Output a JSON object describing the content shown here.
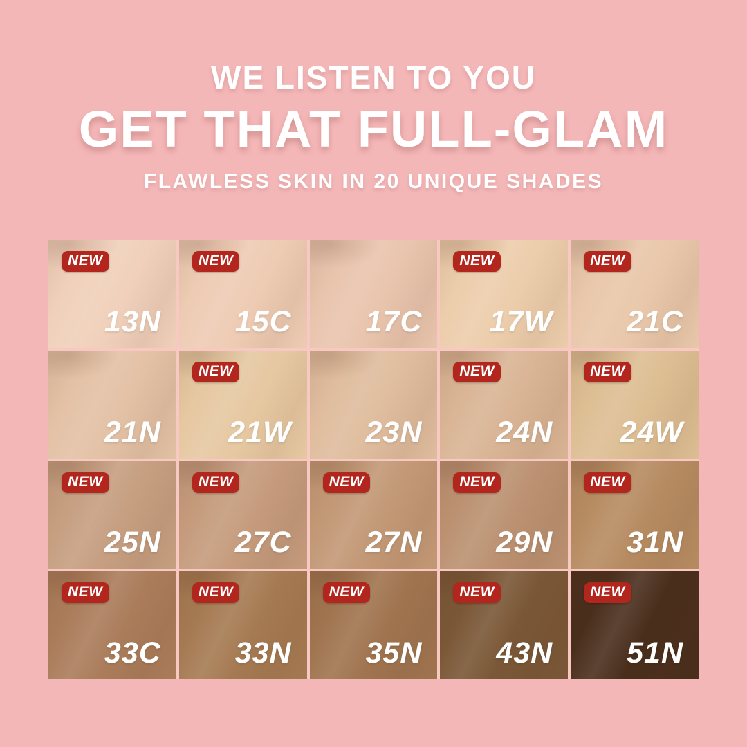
{
  "page": {
    "background": "#f4b7b7"
  },
  "header": {
    "eyebrow": "WE LISTEN TO YOU",
    "title": "GET THAT FULL-GLAM",
    "subtitle": "FLAWLESS SKIN IN 20 UNIQUE SHADES"
  },
  "badge": {
    "label": "NEW",
    "color": "#b3261e"
  },
  "shades": [
    {
      "code": "13N",
      "color": "#f0d0ba",
      "new": true
    },
    {
      "code": "15C",
      "color": "#eecbb3",
      "new": true
    },
    {
      "code": "17C",
      "color": "#e9c4ad",
      "new": false
    },
    {
      "code": "17W",
      "color": "#eccdab",
      "new": true
    },
    {
      "code": "21C",
      "color": "#e9c7aa",
      "new": true
    },
    {
      "code": "21N",
      "color": "#e3c1a5",
      "new": false
    },
    {
      "code": "21W",
      "color": "#e6c8a1",
      "new": true
    },
    {
      "code": "23N",
      "color": "#dfbc9d",
      "new": false
    },
    {
      "code": "24N",
      "color": "#d9b494",
      "new": true
    },
    {
      "code": "24W",
      "color": "#ddbe93",
      "new": true
    },
    {
      "code": "25N",
      "color": "#c69e80",
      "new": true
    },
    {
      "code": "27C",
      "color": "#c59b7c",
      "new": true
    },
    {
      "code": "27N",
      "color": "#c29875",
      "new": true
    },
    {
      "code": "29N",
      "color": "#bb9171",
      "new": true
    },
    {
      "code": "31N",
      "color": "#b68b61",
      "new": true
    },
    {
      "code": "33C",
      "color": "#aa7c5a",
      "new": true
    },
    {
      "code": "33N",
      "color": "#a57a52",
      "new": true
    },
    {
      "code": "35N",
      "color": "#a0744f",
      "new": true
    },
    {
      "code": "43N",
      "color": "#7a5736",
      "new": true
    },
    {
      "code": "51N",
      "color": "#4a2e1c",
      "new": true
    }
  ]
}
